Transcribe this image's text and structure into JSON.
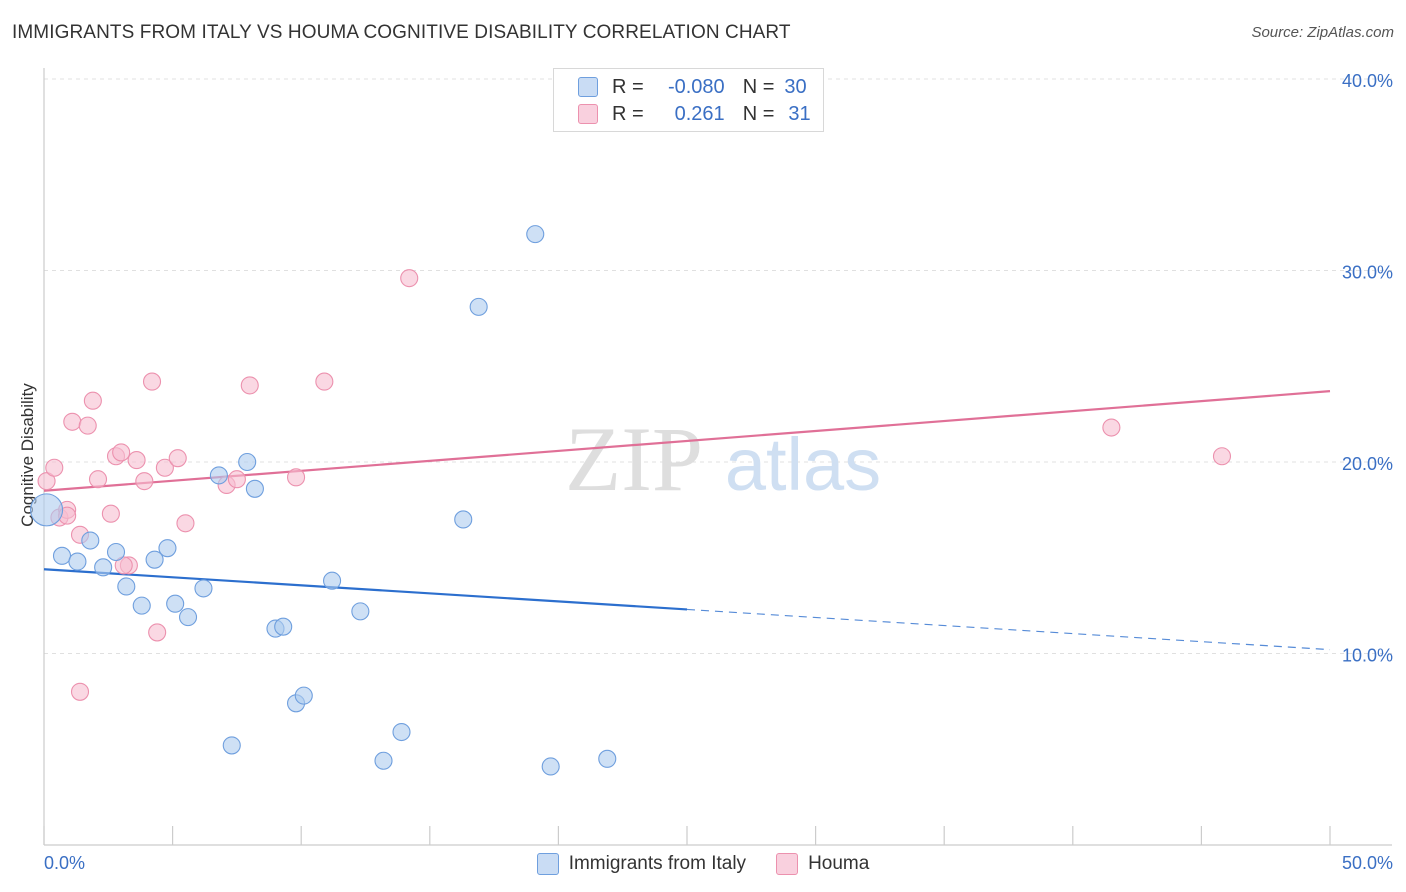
{
  "title": "IMMIGRANTS FROM ITALY VS HOUMA COGNITIVE DISABILITY CORRELATION CHART",
  "source": "Source: ZipAtlas.com",
  "watermark": {
    "zip": "ZIP",
    "atlas": "atlas"
  },
  "legend": {
    "rows": [
      {
        "r_label": "R =",
        "r_value": "-0.080",
        "n_label": "N =",
        "n_value": "30"
      },
      {
        "r_label": "R =",
        "r_value": "0.261",
        "n_label": "N =",
        "n_value": "31"
      }
    ]
  },
  "colors": {
    "blue_fill": "#aecbef",
    "blue_stroke": "#6f9fde",
    "blue_line": "#2c6fce",
    "pink_fill": "#f7bed0",
    "pink_stroke": "#ec91ae",
    "pink_line": "#e07097",
    "axis_text": "#3a6fc4",
    "grid": "#e0e0e0"
  },
  "chart_data": {
    "type": "scatter",
    "title": "IMMIGRANTS FROM ITALY VS HOUMA COGNITIVE DISABILITY CORRELATION CHART",
    "xlabel": "",
    "ylabel": "Cognitive Disability",
    "xlim": [
      0,
      50
    ],
    "ylim": [
      0,
      42
    ],
    "x_tick_labels": [
      "0.0%",
      "50.0%"
    ],
    "y_ticks": [
      10,
      20,
      30,
      40
    ],
    "y_tick_labels": [
      "10.0%",
      "20.0%",
      "30.0%",
      "40.0%"
    ],
    "grid": true,
    "legend_position": "top-center",
    "series": [
      {
        "name": "Immigrants from Italy",
        "color": "#aecbef",
        "points": [
          [
            0.1,
            17.5
          ],
          [
            0.7,
            15.1
          ],
          [
            1.3,
            14.8
          ],
          [
            1.8,
            15.9
          ],
          [
            2.3,
            14.5
          ],
          [
            2.8,
            15.3
          ],
          [
            3.2,
            13.5
          ],
          [
            3.8,
            12.5
          ],
          [
            4.3,
            14.9
          ],
          [
            4.8,
            15.5
          ],
          [
            5.1,
            12.6
          ],
          [
            5.6,
            11.9
          ],
          [
            6.2,
            13.4
          ],
          [
            6.8,
            19.3
          ],
          [
            7.3,
            5.2
          ],
          [
            7.9,
            20.0
          ],
          [
            8.2,
            18.6
          ],
          [
            9.0,
            11.3
          ],
          [
            9.3,
            11.4
          ],
          [
            9.8,
            7.4
          ],
          [
            10.1,
            7.8
          ],
          [
            11.2,
            13.8
          ],
          [
            12.3,
            12.2
          ],
          [
            13.2,
            4.4
          ],
          [
            13.9,
            5.9
          ],
          [
            16.3,
            17.0
          ],
          [
            16.9,
            28.1
          ],
          [
            19.1,
            31.9
          ],
          [
            19.7,
            4.1
          ],
          [
            21.9,
            4.5
          ]
        ],
        "trend": {
          "x_solid": [
            0,
            25
          ],
          "y_solid": [
            14.4,
            12.3
          ],
          "x_dashed": [
            25,
            50
          ],
          "y_dashed": [
            12.3,
            10.2
          ]
        }
      },
      {
        "name": "Houma",
        "color": "#f7bed0",
        "points": [
          [
            0.1,
            19.0
          ],
          [
            0.4,
            19.7
          ],
          [
            0.6,
            17.1
          ],
          [
            0.9,
            17.5
          ],
          [
            1.1,
            22.1
          ],
          [
            1.4,
            16.2
          ],
          [
            1.7,
            21.9
          ],
          [
            1.9,
            23.2
          ],
          [
            2.1,
            19.1
          ],
          [
            2.6,
            17.3
          ],
          [
            2.8,
            20.3
          ],
          [
            3.0,
            20.5
          ],
          [
            3.3,
            14.6
          ],
          [
            3.6,
            20.1
          ],
          [
            3.9,
            19.0
          ],
          [
            4.2,
            24.2
          ],
          [
            4.4,
            11.1
          ],
          [
            4.7,
            19.7
          ],
          [
            5.2,
            20.2
          ],
          [
            5.5,
            16.8
          ],
          [
            7.1,
            18.8
          ],
          [
            7.5,
            19.1
          ],
          [
            8.0,
            24.0
          ],
          [
            9.8,
            19.2
          ],
          [
            10.9,
            24.2
          ],
          [
            14.2,
            29.6
          ],
          [
            1.4,
            8.0
          ],
          [
            3.1,
            14.6
          ],
          [
            41.5,
            21.8
          ],
          [
            45.8,
            20.3
          ],
          [
            0.9,
            17.2
          ]
        ],
        "trend": {
          "x": [
            0,
            50
          ],
          "y": [
            18.5,
            23.7
          ]
        }
      }
    ]
  },
  "bottom_legend": [
    {
      "label": "Immigrants from Italy"
    },
    {
      "label": "Houma"
    }
  ]
}
